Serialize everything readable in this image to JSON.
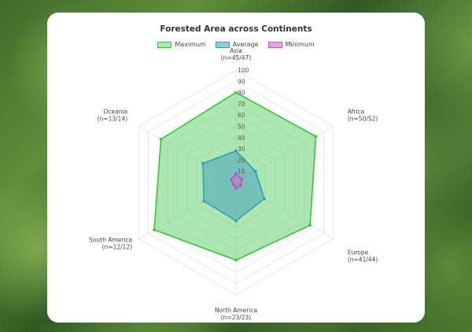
{
  "chart_data": {
    "type": "radar",
    "title": "Forested Area across Continents",
    "categories": [
      {
        "name": "Asia",
        "sub": "(n=45/47)"
      },
      {
        "name": "Africa",
        "sub": "(n=50/52)"
      },
      {
        "name": "Europe",
        "sub": "(n=41/44)"
      },
      {
        "name": "North America",
        "sub": "(n=23/23)"
      },
      {
        "name": "South America",
        "sub": "(n=12/12)"
      },
      {
        "name": "Oceania",
        "sub": "(n=13/14)"
      }
    ],
    "series": [
      {
        "name": "Maximum",
        "values": [
          80,
          82,
          76,
          69,
          84,
          77
        ],
        "fill": "rgba(72,200,80,0.45)",
        "stroke": "#3cc23c"
      },
      {
        "name": "Average",
        "values": [
          28,
          20,
          29,
          34,
          33,
          34
        ],
        "fill": "rgba(80,170,190,0.6)",
        "stroke": "#3a9ab8"
      },
      {
        "name": "Minimum",
        "values": [
          8,
          6,
          5,
          5,
          3,
          5
        ],
        "fill": "rgba(200,110,200,0.6)",
        "stroke": "#c052c0"
      }
    ],
    "rmin": 0,
    "rmax": 100,
    "ticks": [
      10,
      20,
      30,
      40,
      50,
      60,
      70,
      80,
      90,
      100
    ],
    "legend_position": "top"
  }
}
